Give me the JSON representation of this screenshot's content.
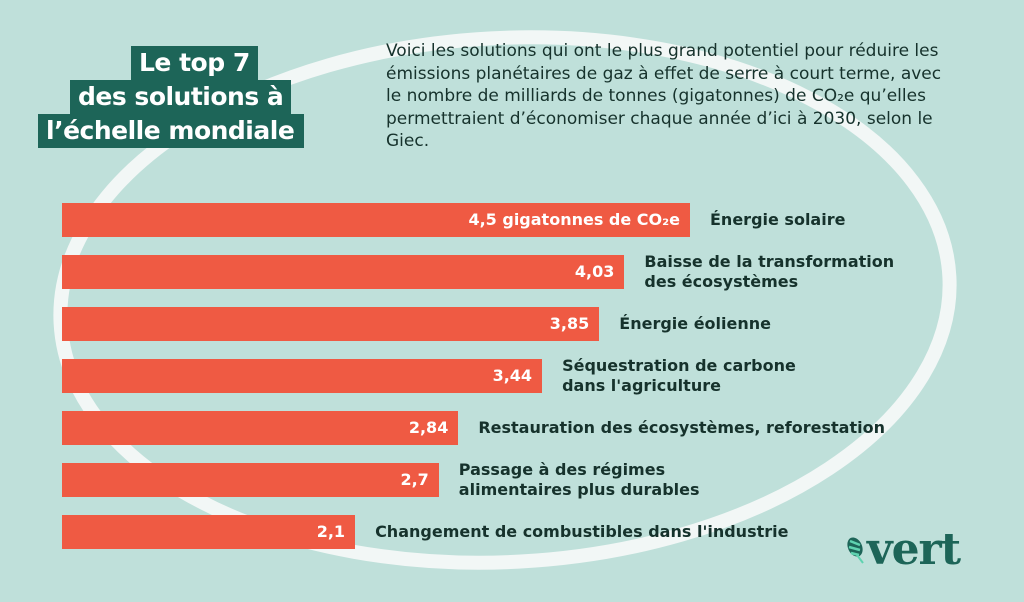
{
  "title_lines": [
    "Le top 7",
    "des solutions à",
    "l’échelle mondiale"
  ],
  "intro": "Voici les solutions qui ont le plus grand potentiel pour réduire les émissions planétaires de gaz à effet de serre à court terme, avec le nombre de milliards de tonnes (gigatonnes) de CO₂e qu’elles permettraient d’économiser chaque année d’ici à 2030, selon le Giec.",
  "logo": "vert",
  "colors": {
    "bar": "#ef5a43",
    "bg": "#bfe0da",
    "title_bg": "#1d6558"
  },
  "chart_data": {
    "type": "bar",
    "orientation": "horizontal",
    "title": "Le top 7 des solutions à l’échelle mondiale",
    "unit": "gigatonnes de CO₂e",
    "categories": [
      "Énergie solaire",
      "Baisse de la transformation\ndes écosystèmes",
      "Énergie éolienne",
      "Séquestration de carbone\ndans l'agriculture",
      "Restauration des écosystèmes, reforestation",
      "Passage à des régimes\nalimentaires plus durables",
      "Changement de combustibles dans l'industrie"
    ],
    "values": [
      4.5,
      4.03,
      3.85,
      3.44,
      2.84,
      2.7,
      2.1
    ],
    "value_labels": [
      "4,5 gigatonnes de CO₂e",
      "4,03",
      "3,85",
      "3,44",
      "2,84",
      "2,7",
      "2,1"
    ],
    "xlim": [
      0,
      4.5
    ]
  }
}
